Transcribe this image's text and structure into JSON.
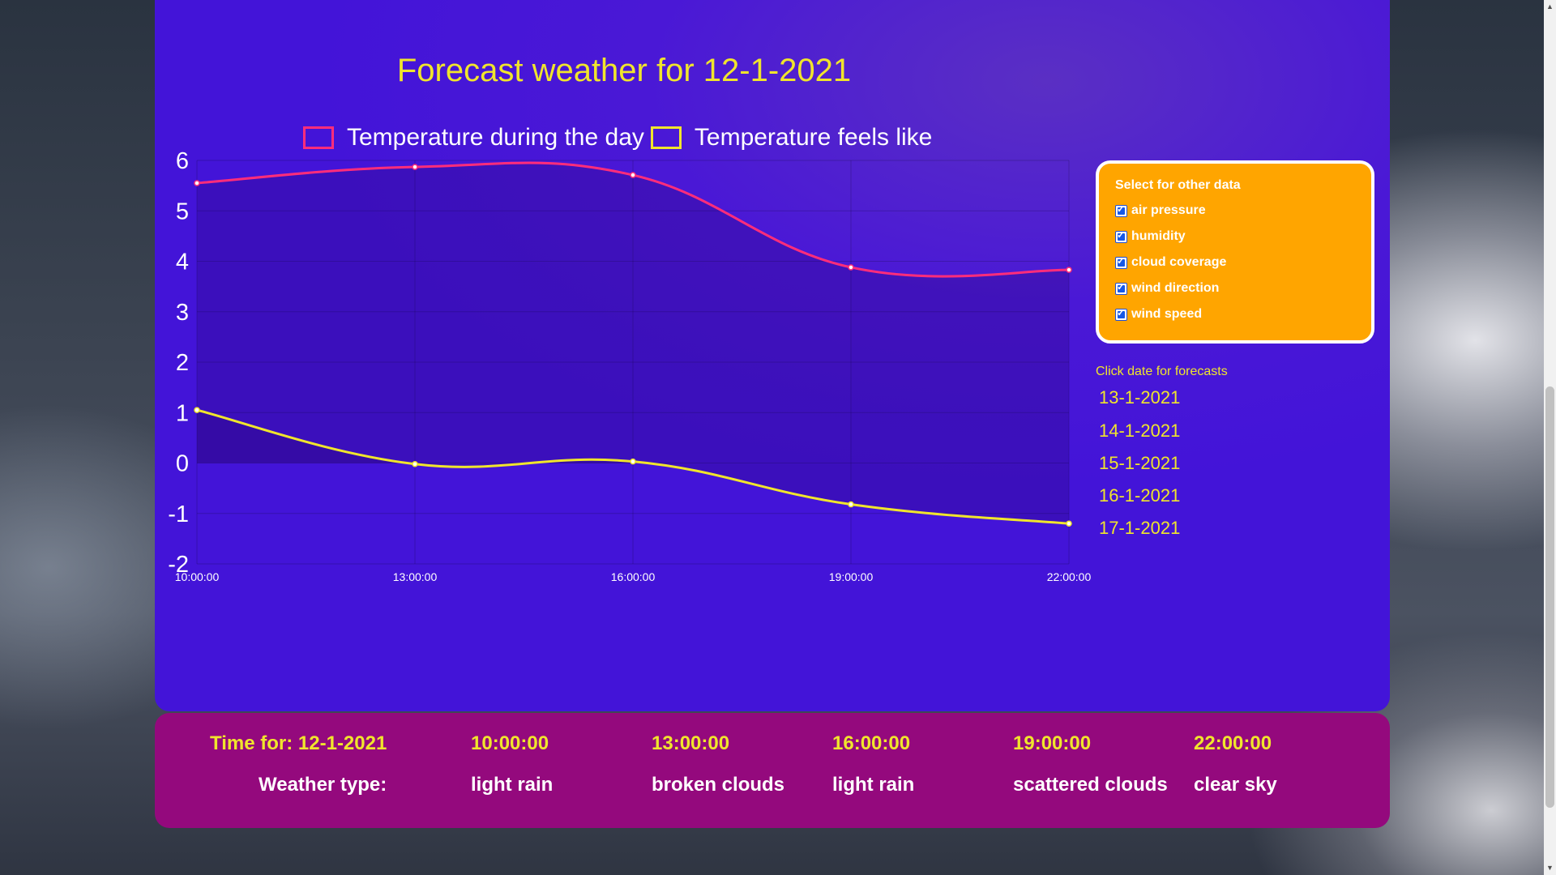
{
  "chart_data": {
    "type": "line",
    "title": "Forecast weather for 12-1-2021",
    "categories": [
      "10:00:00",
      "13:00:00",
      "16:00:00",
      "19:00:00",
      "22:00:00"
    ],
    "series": [
      {
        "name": "Temperature during the day",
        "values": [
          5.55,
          5.87,
          5.71,
          3.88,
          3.83
        ],
        "color": "#ff2d7a"
      },
      {
        "name": "Temperature feels like",
        "values": [
          1.05,
          -0.02,
          0.03,
          -0.82,
          -1.2
        ],
        "color": "#f0e52c"
      }
    ],
    "ylim": [
      -2,
      6
    ],
    "yticks": [
      "6",
      "5",
      "4",
      "3",
      "2",
      "1",
      "0",
      "-1",
      "-2"
    ],
    "grid": true,
    "legend": "top"
  },
  "options": {
    "title": "Select for other data",
    "items": [
      {
        "label": "air pressure",
        "checked": true
      },
      {
        "label": "humidity",
        "checked": true
      },
      {
        "label": "cloud coverage",
        "checked": true
      },
      {
        "label": "wind direction",
        "checked": true
      },
      {
        "label": "wind speed",
        "checked": true
      }
    ]
  },
  "dates": {
    "caption": "Click date for forecasts",
    "items": [
      "13-1-2021",
      "14-1-2021",
      "15-1-2021",
      "16-1-2021",
      "17-1-2021"
    ]
  },
  "summary": {
    "time_label": "Time for: 12-1-2021",
    "type_label": "Weather type:",
    "times": [
      "10:00:00",
      "13:00:00",
      "16:00:00",
      "19:00:00",
      "22:00:00"
    ],
    "types": [
      "light rain",
      "broken clouds",
      "light rain",
      "scattered clouds",
      "clear sky"
    ]
  },
  "colors": {
    "panel": "#4314d8",
    "summary_panel": "#94097d",
    "accent_yellow": "#f0e52c",
    "options_box": "#ffa500"
  }
}
